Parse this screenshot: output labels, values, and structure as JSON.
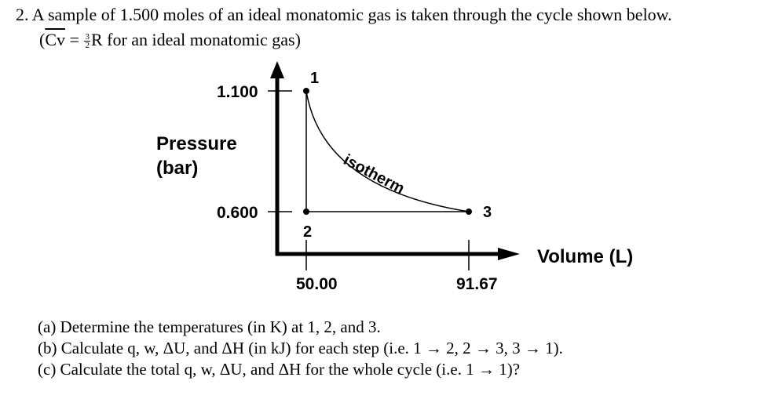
{
  "problem": {
    "number": "2.",
    "statement": "A sample of 1.500 moles of an ideal monatomic gas is taken through the cycle shown below.",
    "note_open": "(",
    "note_cv": "Cv",
    "note_eq": " = ",
    "frac_num": "3",
    "frac_den": "2",
    "note_rest": "R  for an ideal monatomic gas)"
  },
  "chart_data": {
    "type": "line",
    "ylabel_line1": "Pressure",
    "ylabel_line2": "(bar)",
    "xlabel": "Volume (L)",
    "y_ticks": [
      "1.100",
      "0.600"
    ],
    "x_ticks": [
      "50.00",
      "91.67"
    ],
    "points": [
      {
        "label": "1",
        "volume": 50.0,
        "pressure": 1.1
      },
      {
        "label": "2",
        "volume": 50.0,
        "pressure": 0.6
      },
      {
        "label": "3",
        "volume": 91.67,
        "pressure": 0.6
      }
    ],
    "curve_label": "isotherm"
  },
  "questions": {
    "a": "(a)  Determine the temperatures (in K) at 1, 2, and 3.",
    "b": "(b)  Calculate q, w, ΔU, and ΔH (in kJ) for each step (i.e. 1 → 2, 2 → 3, 3 → 1).",
    "c": "(c)  Calculate the total q, w, ΔU, and ΔH for the whole cycle (i.e. 1 → 1)?"
  }
}
